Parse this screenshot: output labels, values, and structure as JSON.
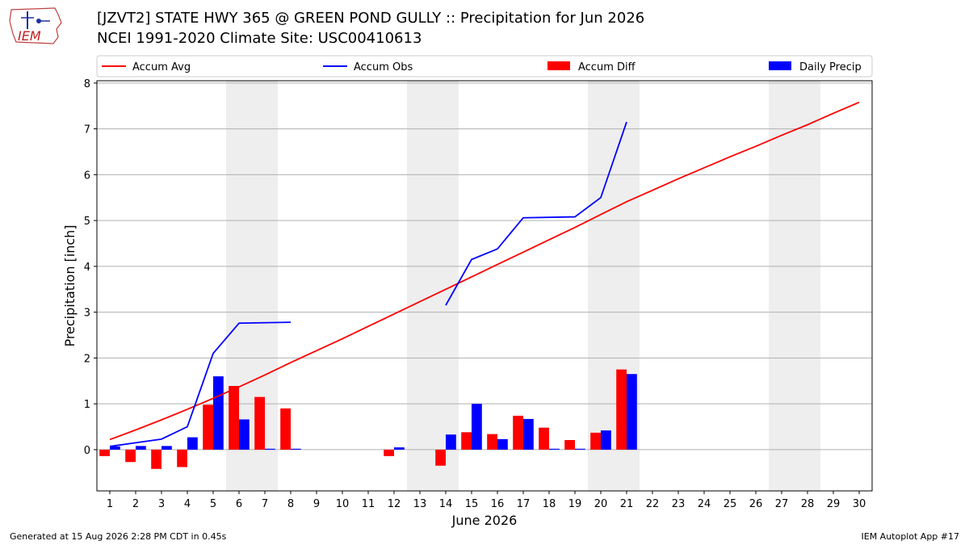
{
  "header": {
    "title_line1": "[JZVT2] STATE HWY 365 @ GREEN POND GULLY :: Precipitation for Jun 2026",
    "title_line2": "NCEI 1991-2020 Climate Site: USC00410613",
    "logo_text": "IEM"
  },
  "footer": {
    "generated": "Generated at 15 Aug 2026 2:28 PM CDT in 0.45s",
    "app": "IEM Autoplot App #17"
  },
  "colors": {
    "avg": "#ff0000",
    "obs": "#0000ff",
    "diff": "#ff0000",
    "daily": "#0000ff",
    "weekend_band": "#eeeeee",
    "grid": "#b0b0b0"
  },
  "chart_data": {
    "type": "bar",
    "xlabel": "June 2026",
    "ylabel": "Precipitation [inch]",
    "xlim": [
      0.5,
      30.5
    ],
    "ylim": [
      -0.9,
      8.05
    ],
    "yticks": [
      0,
      1,
      2,
      3,
      4,
      5,
      6,
      7,
      8
    ],
    "days": [
      1,
      2,
      3,
      4,
      5,
      6,
      7,
      8,
      9,
      10,
      11,
      12,
      13,
      14,
      15,
      16,
      17,
      18,
      19,
      20,
      21,
      22,
      23,
      24,
      25,
      26,
      27,
      28,
      29,
      30
    ],
    "grid": "horizontal",
    "legend_position": "top",
    "weekend_bands": [
      [
        5.5,
        7.5
      ],
      [
        12.5,
        14.5
      ],
      [
        19.5,
        21.5
      ],
      [
        26.5,
        28.5
      ]
    ],
    "legend": [
      {
        "label": "Accum Avg",
        "kind": "line",
        "color": "#ff0000"
      },
      {
        "label": "Accum Obs",
        "kind": "line",
        "color": "#0000ff"
      },
      {
        "label": "Accum Diff",
        "kind": "bar",
        "color": "#ff0000"
      },
      {
        "label": "Daily Precip",
        "kind": "bar",
        "color": "#0000ff"
      }
    ],
    "series": [
      {
        "name": "Accum Avg",
        "type": "line",
        "color": "#ff0000",
        "x": [
          1,
          2,
          3,
          4,
          5,
          6,
          7,
          8,
          9,
          10,
          11,
          12,
          13,
          14,
          15,
          16,
          17,
          18,
          19,
          20,
          21,
          22,
          23,
          24,
          25,
          26,
          27,
          28,
          29,
          30
        ],
        "values": [
          0.22,
          0.43,
          0.65,
          0.88,
          1.12,
          1.37,
          1.63,
          1.9,
          2.16,
          2.42,
          2.69,
          2.96,
          3.23,
          3.5,
          3.77,
          4.04,
          4.31,
          4.58,
          4.85,
          5.13,
          5.41,
          5.66,
          5.91,
          6.15,
          6.39,
          6.62,
          6.86,
          7.09,
          7.34,
          7.58
        ]
      },
      {
        "name": "Accum Obs",
        "type": "line",
        "color": "#0000ff",
        "segments": [
          {
            "x": [
              1,
              2,
              3,
              4,
              5,
              6,
              8
            ],
            "values": [
              0.07,
              0.15,
              0.23,
              0.5,
              2.1,
              2.76,
              2.78
            ]
          },
          {
            "x": [
              14,
              15,
              16,
              17,
              19,
              20,
              21
            ],
            "values": [
              3.15,
              4.15,
              4.38,
              5.06,
              5.08,
              5.5,
              7.15
            ]
          }
        ]
      },
      {
        "name": "Accum Diff",
        "type": "bar",
        "color": "#ff0000",
        "x": [
          1,
          2,
          3,
          4,
          5,
          6,
          7,
          8,
          12,
          14,
          15,
          16,
          17,
          18,
          19,
          20,
          21
        ],
        "values": [
          -0.14,
          -0.27,
          -0.42,
          -0.38,
          0.98,
          1.39,
          1.15,
          0.9,
          -0.14,
          -0.35,
          0.38,
          0.34,
          0.74,
          0.48,
          0.21,
          0.37,
          1.75
        ]
      },
      {
        "name": "Daily Precip",
        "type": "bar",
        "color": "#0000ff",
        "x": [
          1,
          2,
          3,
          4,
          5,
          6,
          7,
          8,
          12,
          14,
          15,
          16,
          17,
          18,
          19,
          20,
          21
        ],
        "values": [
          0.07,
          0.08,
          0.08,
          0.27,
          1.6,
          0.66,
          0.02,
          0.02,
          0.05,
          0.33,
          1.0,
          0.23,
          0.67,
          0.02,
          0.02,
          0.42,
          1.65
        ]
      }
    ]
  }
}
